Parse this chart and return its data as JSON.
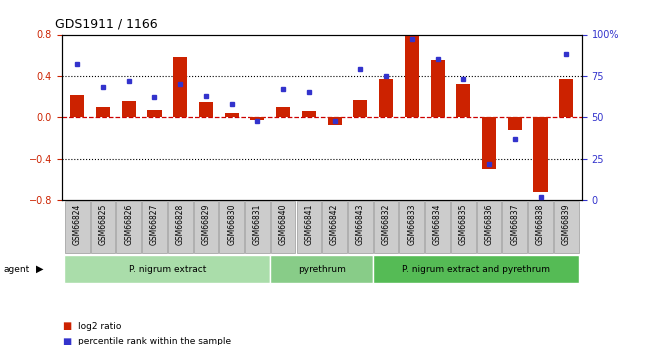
{
  "title": "GDS1911 / 1166",
  "samples": [
    "GSM66824",
    "GSM66825",
    "GSM66826",
    "GSM66827",
    "GSM66828",
    "GSM66829",
    "GSM66830",
    "GSM66831",
    "GSM66840",
    "GSM66841",
    "GSM66842",
    "GSM66843",
    "GSM66832",
    "GSM66833",
    "GSM66834",
    "GSM66835",
    "GSM66836",
    "GSM66837",
    "GSM66838",
    "GSM66839"
  ],
  "log2_ratio": [
    0.22,
    0.1,
    0.16,
    0.07,
    0.58,
    0.15,
    0.04,
    -0.03,
    0.1,
    0.06,
    -0.07,
    0.17,
    0.37,
    0.8,
    0.55,
    0.32,
    -0.5,
    -0.12,
    -0.72,
    0.37
  ],
  "percentile_rank": [
    82,
    68,
    72,
    62,
    70,
    63,
    58,
    48,
    67,
    65,
    48,
    79,
    75,
    97,
    85,
    73,
    22,
    37,
    2,
    88
  ],
  "groups": [
    {
      "label": "P. nigrum extract",
      "start": 0,
      "end": 8,
      "color": "#aaddaa"
    },
    {
      "label": "pyrethrum",
      "start": 8,
      "end": 12,
      "color": "#88cc88"
    },
    {
      "label": "P. nigrum extract and pyrethrum",
      "start": 12,
      "end": 20,
      "color": "#55bb55"
    }
  ],
  "bar_color": "#cc2200",
  "dot_color": "#3333cc",
  "zero_line_color": "#cc0000",
  "ylim_left": [
    -0.8,
    0.8
  ],
  "ylim_right": [
    0,
    100
  ],
  "yticks_left": [
    -0.8,
    -0.4,
    0.0,
    0.4,
    0.8
  ],
  "yticks_right": [
    0,
    25,
    50,
    75,
    100
  ],
  "ytick_labels_right": [
    "0",
    "25",
    "50",
    "75",
    "100%"
  ],
  "bar_width": 0.55,
  "legend_items": [
    {
      "label": "log2 ratio",
      "color": "#cc2200"
    },
    {
      "label": "percentile rank within the sample",
      "color": "#3333cc"
    }
  ],
  "tick_box_color": "#cccccc",
  "tick_box_edge_color": "#999999"
}
